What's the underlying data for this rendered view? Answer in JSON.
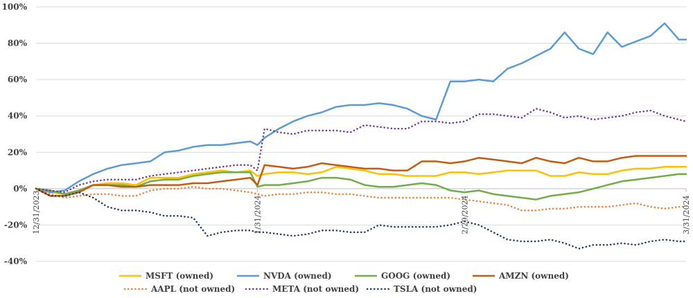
{
  "chart_data": {
    "type": "line",
    "title": "",
    "xlabel": "",
    "ylabel": "",
    "ylim": [
      -40,
      100
    ],
    "ytick_values": [
      -40,
      -20,
      0,
      20,
      40,
      60,
      80,
      100
    ],
    "ytick_labels": [
      "-40%",
      "-20%",
      "0%",
      "20%",
      "40%",
      "60%",
      "80%",
      "100%"
    ],
    "xlim": [
      0,
      91
    ],
    "xtick_positions": [
      0,
      31,
      60,
      91
    ],
    "xtick_labels": [
      "12/31/2023",
      "1/31/2024",
      "2/29/2024",
      "3/31/2024"
    ],
    "grid": true,
    "legend_position": "bottom",
    "series": [
      {
        "name": "MSFT (owned)",
        "color": "#FFC000",
        "style": "solid",
        "x": [
          0,
          2,
          4,
          6,
          8,
          10,
          12,
          14,
          16,
          18,
          20,
          22,
          24,
          26,
          28,
          30,
          31,
          32,
          34,
          36,
          38,
          40,
          42,
          44,
          46,
          48,
          50,
          52,
          54,
          56,
          58,
          60,
          62,
          64,
          66,
          68,
          70,
          72,
          74,
          76,
          78,
          80,
          82,
          84,
          86,
          88,
          90,
          91
        ],
        "y": [
          0,
          -2,
          -3,
          -1,
          2,
          3,
          3,
          2,
          6,
          6,
          6,
          8,
          9,
          10,
          9,
          10,
          7,
          8,
          9,
          9,
          8,
          9,
          12,
          11,
          10,
          8,
          8,
          7,
          7,
          7,
          9,
          9,
          8,
          9,
          10,
          10,
          10,
          7,
          7,
          9,
          8,
          8,
          10,
          11,
          11,
          12,
          12,
          12
        ]
      },
      {
        "name": "NVDA (owned)",
        "color": "#5B9BD5",
        "style": "solid",
        "x": [
          0,
          2,
          4,
          6,
          8,
          10,
          12,
          14,
          16,
          18,
          20,
          22,
          24,
          26,
          28,
          30,
          31,
          32,
          34,
          36,
          38,
          40,
          42,
          44,
          46,
          48,
          50,
          52,
          54,
          56,
          58,
          60,
          62,
          64,
          66,
          68,
          70,
          72,
          74,
          76,
          78,
          80,
          82,
          84,
          86,
          88,
          90,
          91
        ],
        "y": [
          0,
          -2,
          -1,
          4,
          8,
          11,
          13,
          14,
          15,
          20,
          21,
          23,
          24,
          24,
          25,
          26,
          24,
          28,
          33,
          37,
          40,
          42,
          45,
          46,
          46,
          47,
          46,
          44,
          40,
          38,
          59,
          59,
          60,
          59,
          66,
          69,
          73,
          77,
          86,
          77,
          74,
          86,
          78,
          81,
          84,
          91,
          82,
          82
        ]
      },
      {
        "name": "GOOG (owned)",
        "color": "#70AD47",
        "style": "solid",
        "x": [
          0,
          2,
          4,
          6,
          8,
          10,
          12,
          14,
          16,
          18,
          20,
          22,
          24,
          26,
          28,
          30,
          31,
          32,
          34,
          36,
          38,
          40,
          42,
          44,
          46,
          48,
          50,
          52,
          54,
          56,
          58,
          60,
          62,
          64,
          66,
          68,
          70,
          72,
          74,
          76,
          78,
          80,
          82,
          84,
          86,
          88,
          90,
          91
        ],
        "y": [
          0,
          -1,
          -3,
          -1,
          2,
          2,
          2,
          1,
          4,
          5,
          5,
          7,
          8,
          9,
          9,
          9,
          1,
          2,
          2,
          3,
          4,
          6,
          6,
          5,
          2,
          1,
          1,
          2,
          3,
          2,
          -1,
          -2,
          -1,
          -3,
          -4,
          -5,
          -6,
          -4,
          -3,
          -2,
          0,
          2,
          4,
          5,
          6,
          7,
          8,
          8
        ]
      },
      {
        "name": "AMZN (owned)",
        "color": "#C55A11",
        "style": "solid",
        "x": [
          0,
          2,
          4,
          6,
          8,
          10,
          12,
          14,
          16,
          18,
          20,
          22,
          24,
          26,
          28,
          30,
          31,
          32,
          34,
          36,
          38,
          40,
          42,
          44,
          46,
          48,
          50,
          52,
          54,
          56,
          58,
          60,
          62,
          64,
          66,
          68,
          70,
          72,
          74,
          76,
          78,
          80,
          82,
          84,
          86,
          88,
          90,
          91
        ],
        "y": [
          0,
          -4,
          -4,
          -2,
          2,
          2,
          1,
          1,
          2,
          2,
          2,
          3,
          3,
          4,
          5,
          6,
          2,
          13,
          12,
          11,
          12,
          14,
          13,
          12,
          11,
          11,
          10,
          10,
          15,
          15,
          14,
          15,
          17,
          16,
          15,
          14,
          17,
          15,
          14,
          17,
          15,
          15,
          17,
          18,
          18,
          18,
          18,
          18
        ]
      },
      {
        "name": "AAPL (not owned)",
        "color": "#ED7D31",
        "style": "dotted",
        "x": [
          0,
          2,
          4,
          6,
          8,
          10,
          12,
          14,
          16,
          18,
          20,
          22,
          24,
          26,
          28,
          30,
          31,
          32,
          34,
          36,
          38,
          40,
          42,
          44,
          46,
          48,
          50,
          52,
          54,
          56,
          58,
          60,
          62,
          64,
          66,
          68,
          70,
          72,
          74,
          76,
          78,
          80,
          82,
          84,
          86,
          88,
          90,
          91
        ],
        "y": [
          0,
          -3,
          -5,
          -4,
          -3,
          -3,
          -4,
          -4,
          -1,
          0,
          0,
          1,
          0,
          0,
          -1,
          -2,
          -3,
          -4,
          -3,
          -3,
          -2,
          -2,
          -3,
          -3,
          -4,
          -5,
          -5,
          -5,
          -5,
          -5,
          -5,
          -6,
          -7,
          -8,
          -9,
          -12,
          -12,
          -11,
          -11,
          -10,
          -10,
          -10,
          -9,
          -8,
          -10,
          -11,
          -10,
          -10
        ]
      },
      {
        "name": "META (not owned)",
        "color": "#7030A0",
        "style": "dotted",
        "x": [
          0,
          2,
          4,
          6,
          8,
          10,
          12,
          14,
          16,
          18,
          20,
          22,
          24,
          26,
          28,
          30,
          31,
          32,
          34,
          36,
          38,
          40,
          42,
          44,
          46,
          48,
          50,
          52,
          54,
          56,
          58,
          60,
          62,
          64,
          66,
          68,
          70,
          72,
          74,
          76,
          78,
          80,
          82,
          84,
          86,
          88,
          90,
          91
        ],
        "y": [
          0,
          -1,
          -2,
          2,
          4,
          5,
          5,
          5,
          7,
          8,
          9,
          10,
          11,
          12,
          13,
          13,
          10,
          33,
          31,
          30,
          32,
          32,
          32,
          31,
          35,
          34,
          33,
          33,
          37,
          37,
          36,
          37,
          41,
          41,
          40,
          39,
          44,
          42,
          39,
          40,
          38,
          39,
          40,
          42,
          43,
          40,
          38,
          37
        ]
      },
      {
        "name": "TSLA (not owned)",
        "color": "#203864",
        "style": "dotted",
        "x": [
          0,
          2,
          4,
          6,
          8,
          10,
          12,
          14,
          16,
          18,
          20,
          22,
          24,
          26,
          28,
          30,
          31,
          32,
          34,
          36,
          38,
          40,
          42,
          44,
          46,
          48,
          50,
          52,
          54,
          56,
          58,
          60,
          62,
          64,
          66,
          68,
          70,
          72,
          74,
          76,
          78,
          80,
          82,
          84,
          86,
          88,
          90,
          91
        ],
        "y": [
          0,
          -4,
          -4,
          -2,
          -5,
          -10,
          -12,
          -12,
          -13,
          -15,
          -15,
          -16,
          -26,
          -24,
          -23,
          -23,
          -24,
          -24,
          -25,
          -26,
          -25,
          -23,
          -23,
          -24,
          -24,
          -20,
          -21,
          -21,
          -21,
          -21,
          -20,
          -18,
          -20,
          -24,
          -28,
          -29,
          -29,
          -28,
          -30,
          -33,
          -31,
          -31,
          -30,
          -31,
          -29,
          -28,
          -29,
          -29
        ]
      }
    ]
  }
}
